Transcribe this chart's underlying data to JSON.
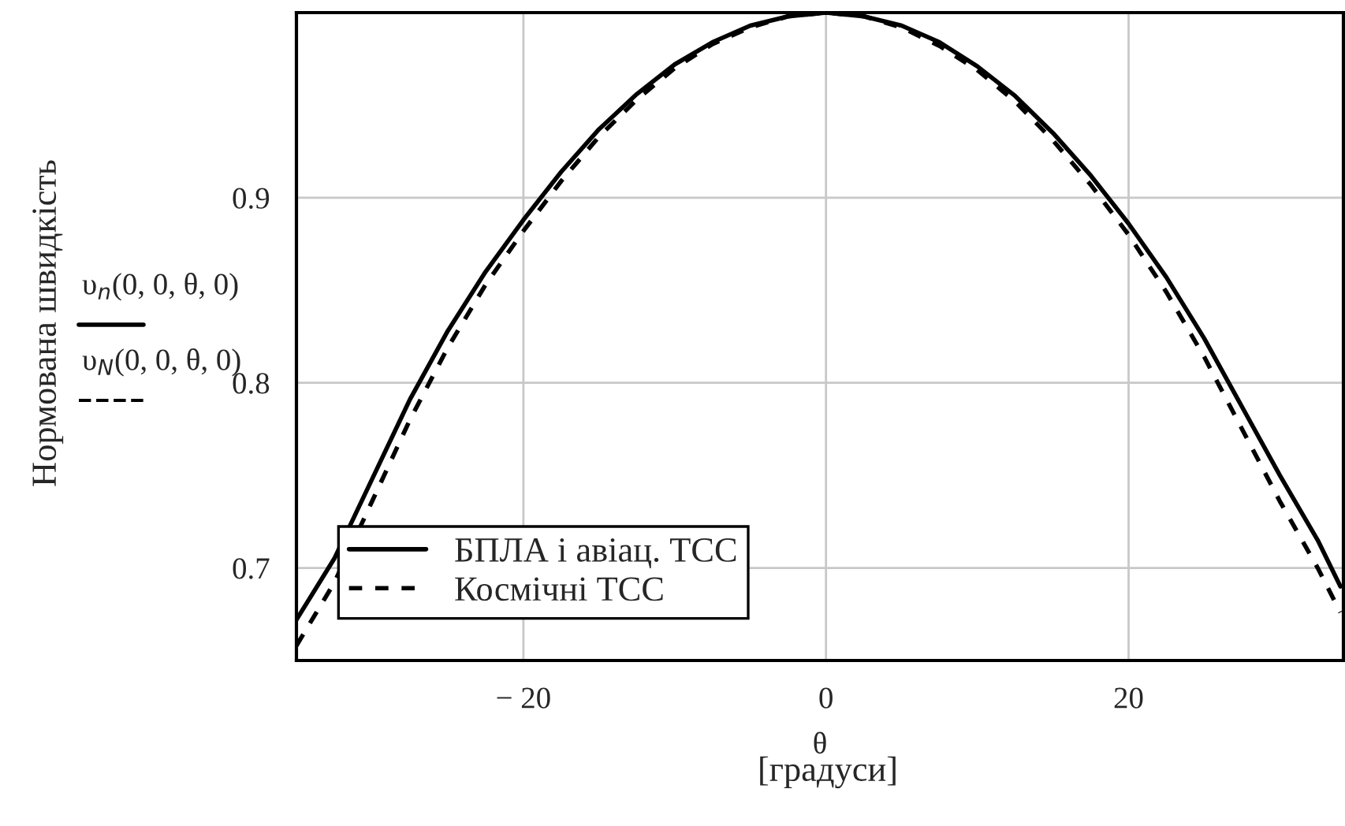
{
  "chart_data": {
    "type": "line",
    "xlabel": "θ",
    "annotations": [
      "[градуси]",
      "Нормована швидкість",
      "υ$_{n}$(0, 0, θ, 0)",
      "υ$_{N}$(0, 0, θ, 0)"
    ],
    "x": [
      -35,
      -32.5,
      -30,
      -27.5,
      -25,
      -22.5,
      -20,
      -17.5,
      -15,
      -12.5,
      -10,
      -7.5,
      -5,
      -2.5,
      0,
      2.5,
      5,
      7.5,
      10,
      12.5,
      15,
      17.5,
      20,
      22.5,
      25,
      27.5,
      30,
      32.5,
      34
    ],
    "series": [
      {
        "name": "БПЛА і авіац. ТСС",
        "color": "#000000",
        "line_style": "solid",
        "values": [
          0.672,
          0.705,
          0.748,
          0.791,
          0.828,
          0.86,
          0.888,
          0.914,
          0.937,
          0.956,
          0.972,
          0.984,
          0.993,
          0.998,
          1.0,
          0.998,
          0.993,
          0.984,
          0.971,
          0.955,
          0.935,
          0.912,
          0.886,
          0.857,
          0.824,
          0.787,
          0.75,
          0.715,
          0.69
        ]
      },
      {
        "name": "Космічні ТСС",
        "color": "#000000",
        "line_style": "dashed",
        "values": [
          0.658,
          0.692,
          0.736,
          0.78,
          0.819,
          0.853,
          0.882,
          0.909,
          0.933,
          0.953,
          0.97,
          0.983,
          0.992,
          0.998,
          1.0,
          0.998,
          0.992,
          0.982,
          0.969,
          0.952,
          0.931,
          0.907,
          0.88,
          0.849,
          0.814,
          0.775,
          0.736,
          0.7,
          0.676
        ]
      }
    ],
    "xlim": [
      -35,
      34.2
    ],
    "ylim": [
      0.65,
      1.0
    ],
    "xticks": [
      {
        "value": -20,
        "label": "− 20"
      },
      0,
      20
    ],
    "yticks": [
      0.7,
      0.8,
      0.9
    ],
    "grid": true,
    "legend": "bottom left"
  }
}
